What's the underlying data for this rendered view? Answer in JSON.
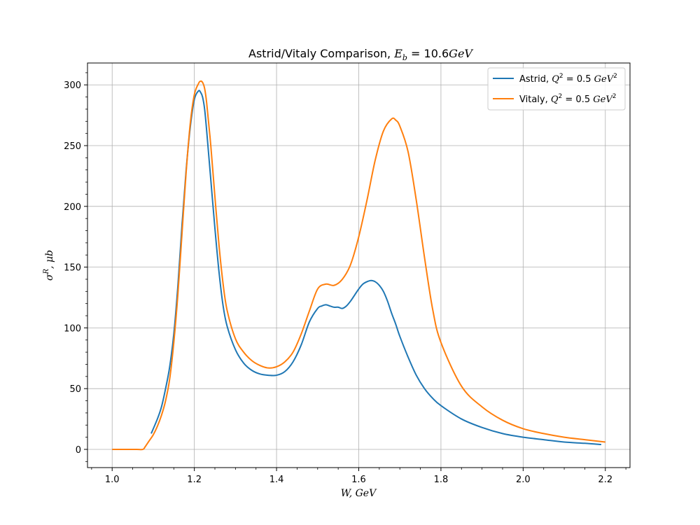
{
  "chart_data": {
    "type": "line",
    "title_prefix": "Astrid/Vitaly Comparison, ",
    "title_math_base": "E",
    "title_math_sub": "b",
    "title_math_rest": " = 10.6",
    "title_math_unit": "GeV",
    "xlabel": "W, GeV",
    "ylabel": "σ",
    "ylabel_sup": "R",
    "ylabel_rest": ", μb",
    "xlim": [
      0.94,
      2.26
    ],
    "ylim": [
      -15,
      318
    ],
    "xticks": [
      1.0,
      1.2,
      1.4,
      1.6,
      1.8,
      2.0,
      2.2
    ],
    "xtick_labels": [
      "1.0",
      "1.2",
      "1.4",
      "1.6",
      "1.8",
      "2.0",
      "2.2"
    ],
    "yticks": [
      0,
      50,
      100,
      150,
      200,
      250,
      300
    ],
    "ytick_labels": [
      "0",
      "50",
      "100",
      "150",
      "200",
      "250",
      "300"
    ],
    "grid": true,
    "legend_position": "top-right",
    "series": [
      {
        "name_prefix": "Astrid, ",
        "name_math": "Q",
        "name_sup": "2",
        "name_mid": " = 0.5 ",
        "name_unit": "GeV",
        "name_unit_sup": "2",
        "color": "#1f77b4",
        "x": [
          1.095,
          1.11,
          1.12,
          1.13,
          1.14,
          1.15,
          1.16,
          1.17,
          1.18,
          1.19,
          1.2,
          1.21,
          1.215,
          1.22,
          1.225,
          1.23,
          1.24,
          1.25,
          1.26,
          1.27,
          1.28,
          1.3,
          1.32,
          1.34,
          1.36,
          1.38,
          1.4,
          1.42,
          1.44,
          1.46,
          1.48,
          1.5,
          1.51,
          1.52,
          1.53,
          1.54,
          1.55,
          1.56,
          1.57,
          1.58,
          1.59,
          1.6,
          1.61,
          1.62,
          1.63,
          1.64,
          1.65,
          1.66,
          1.67,
          1.68,
          1.69,
          1.7,
          1.72,
          1.74,
          1.76,
          1.78,
          1.8,
          1.85,
          1.9,
          1.95,
          2.0,
          2.05,
          2.1,
          2.15,
          2.19
        ],
        "y": [
          13,
          25,
          35,
          50,
          68,
          95,
          135,
          185,
          230,
          265,
          288,
          295,
          294,
          290,
          280,
          262,
          222,
          182,
          146,
          118,
          101,
          82,
          71,
          65,
          62,
          61,
          61,
          64,
          72,
          86,
          105,
          116,
          118,
          119,
          118,
          117,
          117,
          116,
          118,
          122,
          127,
          132,
          136,
          138,
          139,
          138,
          135,
          130,
          122,
          112,
          103,
          93,
          76,
          61,
          50,
          42,
          36,
          25,
          18,
          13,
          10,
          8,
          6,
          5,
          4
        ]
      },
      {
        "name_prefix": "Vitaly, ",
        "name_math": "Q",
        "name_sup": "2",
        "name_mid": " = 0.5 ",
        "name_unit": "GeV",
        "name_unit_sup": "2",
        "color": "#ff7f0e",
        "x": [
          1.0,
          1.04,
          1.06,
          1.075,
          1.08,
          1.09,
          1.1,
          1.11,
          1.12,
          1.13,
          1.14,
          1.15,
          1.16,
          1.17,
          1.18,
          1.19,
          1.2,
          1.21,
          1.215,
          1.22,
          1.225,
          1.23,
          1.24,
          1.25,
          1.26,
          1.27,
          1.28,
          1.3,
          1.32,
          1.34,
          1.36,
          1.38,
          1.4,
          1.42,
          1.44,
          1.46,
          1.48,
          1.5,
          1.52,
          1.54,
          1.56,
          1.58,
          1.6,
          1.62,
          1.64,
          1.66,
          1.68,
          1.69,
          1.7,
          1.72,
          1.74,
          1.76,
          1.78,
          1.8,
          1.85,
          1.9,
          1.95,
          2.0,
          2.05,
          2.1,
          2.15,
          2.2
        ],
        "y": [
          0,
          0,
          0,
          0,
          2,
          7,
          12,
          19,
          28,
          40,
          58,
          88,
          128,
          178,
          228,
          268,
          292,
          301,
          303,
          302,
          297,
          285,
          250,
          208,
          168,
          136,
          114,
          91,
          80,
          73,
          69,
          67,
          68,
          72,
          80,
          95,
          114,
          132,
          136,
          135,
          140,
          152,
          175,
          205,
          238,
          262,
          272,
          271,
          266,
          245,
          205,
          158,
          115,
          88,
          52,
          35,
          24,
          17,
          13,
          10,
          8,
          6
        ]
      }
    ]
  }
}
